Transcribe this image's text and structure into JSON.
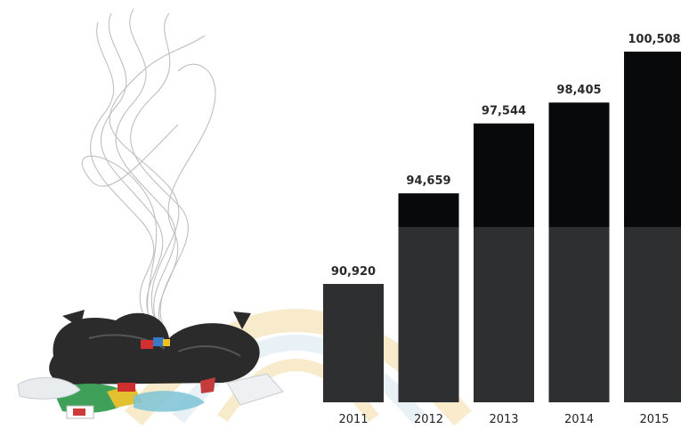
{
  "chart_data": {
    "type": "bar",
    "categories": [
      "2011",
      "2012",
      "2013",
      "2014",
      "2015"
    ],
    "values": [
      90920,
      94659,
      97544,
      98405,
      100508
    ],
    "value_labels": [
      "90,920",
      "94,659",
      "97,544",
      "98,405",
      "100,508"
    ],
    "title": "",
    "xlabel": "",
    "ylabel": "",
    "grid": false,
    "legend": "none"
  },
  "colors": {
    "bar_top": "#07090b",
    "bar_bottom": "#2e2f31",
    "background": "#ffffff",
    "watermark": "#f0d79a",
    "bag": "#2b2b2b",
    "smoke": "#8a8a8a"
  },
  "illustration": {
    "icon": "garbage-pile-smoke-icon"
  }
}
